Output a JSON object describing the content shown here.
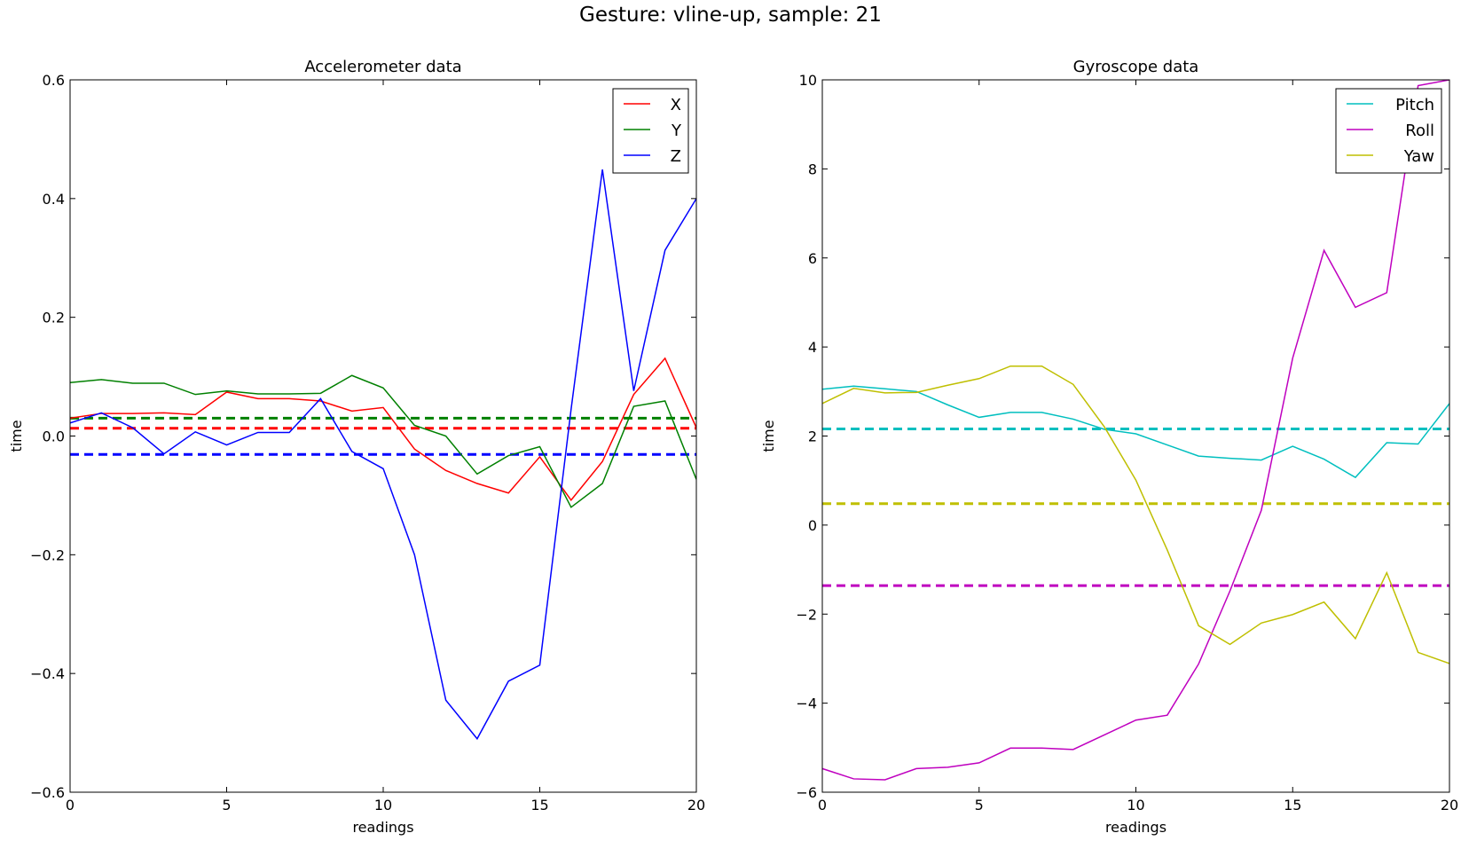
{
  "figure": {
    "suptitle": "Gesture: vline-up, sample: 21"
  },
  "chart_data": [
    {
      "type": "line",
      "title": "Accelerometer data",
      "xlabel": "readings",
      "ylabel": "time",
      "xlim": [
        0,
        20
      ],
      "ylim": [
        -0.6,
        0.6
      ],
      "xticks": [
        0,
        5,
        10,
        15,
        20
      ],
      "yticks": [
        -0.6,
        -0.4,
        -0.2,
        0.0,
        0.2,
        0.4,
        0.6
      ],
      "ytick_labels": [
        "−0.6",
        "−0.4",
        "−0.2",
        "0.0",
        "0.2",
        "0.4",
        "0.6"
      ],
      "legend_position": "top-right",
      "grid": false,
      "x": [
        0,
        1,
        2,
        3,
        4,
        5,
        6,
        7,
        8,
        9,
        10,
        11,
        12,
        13,
        14,
        15,
        16,
        17,
        18,
        19,
        20
      ],
      "series": [
        {
          "name": "X",
          "color": "#ff0000",
          "values": [
            0.03,
            0.038,
            0.038,
            0.039,
            0.036,
            0.074,
            0.063,
            0.063,
            0.059,
            0.042,
            0.048,
            -0.022,
            -0.058,
            -0.08,
            -0.096,
            -0.035,
            -0.108,
            -0.043,
            0.07,
            0.131,
            0.014
          ]
        },
        {
          "name": "Y",
          "color": "#008000",
          "values": [
            0.09,
            0.095,
            0.089,
            0.089,
            0.07,
            0.076,
            0.071,
            0.071,
            0.072,
            0.102,
            0.081,
            0.018,
            0.0,
            -0.064,
            -0.033,
            -0.018,
            -0.12,
            -0.08,
            0.05,
            0.059,
            -0.073
          ]
        },
        {
          "name": "Z",
          "color": "#0000ff",
          "values": [
            0.022,
            0.039,
            0.014,
            -0.03,
            0.007,
            -0.015,
            0.006,
            0.006,
            0.063,
            -0.026,
            -0.055,
            -0.2,
            -0.445,
            -0.51,
            -0.413,
            -0.386,
            0.045,
            0.449,
            0.076,
            0.313,
            0.4
          ]
        }
      ],
      "mean_lines": [
        {
          "color": "#ff0000",
          "value": 0.013
        },
        {
          "color": "#008000",
          "value": 0.03
        },
        {
          "color": "#0000ff",
          "value": -0.031
        }
      ]
    },
    {
      "type": "line",
      "title": "Gyroscope data",
      "xlabel": "readings",
      "ylabel": "time",
      "xlim": [
        0,
        20
      ],
      "ylim": [
        -6,
        10
      ],
      "xticks": [
        0,
        5,
        10,
        15,
        20
      ],
      "yticks": [
        -6,
        -4,
        -2,
        0,
        2,
        4,
        6,
        8,
        10
      ],
      "ytick_labels": [
        "−6",
        "−4",
        "−2",
        "0",
        "2",
        "4",
        "6",
        "8",
        "10"
      ],
      "legend_position": "top-right",
      "grid": false,
      "x": [
        0,
        1,
        2,
        3,
        4,
        5,
        6,
        7,
        8,
        9,
        10,
        11,
        12,
        13,
        14,
        15,
        16,
        17,
        18,
        19,
        20
      ],
      "series": [
        {
          "name": "Pitch",
          "color": "#00bfbf",
          "values": [
            3.05,
            3.12,
            3.06,
            3.0,
            2.7,
            2.42,
            2.53,
            2.53,
            2.38,
            2.15,
            2.05,
            1.8,
            1.55,
            1.5,
            1.46,
            1.77,
            1.48,
            1.07,
            1.85,
            1.82,
            2.73
          ]
        },
        {
          "name": "Roll",
          "color": "#bf00bf",
          "values": [
            -5.47,
            -5.7,
            -5.72,
            -5.47,
            -5.44,
            -5.34,
            -5.01,
            -5.01,
            -5.04,
            -4.71,
            -4.38,
            -4.27,
            -3.12,
            -1.48,
            0.33,
            3.75,
            6.17,
            4.89,
            5.22,
            9.87,
            10.0
          ]
        },
        {
          "name": "Yaw",
          "color": "#bfbf00",
          "values": [
            2.73,
            3.07,
            2.97,
            2.98,
            3.14,
            3.29,
            3.57,
            3.57,
            3.16,
            2.2,
            1.01,
            -0.56,
            -2.26,
            -2.68,
            -2.2,
            -2.01,
            -1.73,
            -2.55,
            -1.07,
            -2.86,
            -3.11
          ]
        }
      ],
      "mean_lines": [
        {
          "color": "#00bfbf",
          "value": 2.16
        },
        {
          "color": "#bfbf00",
          "value": 0.48
        },
        {
          "color": "#bf00bf",
          "value": -1.36
        }
      ]
    }
  ]
}
